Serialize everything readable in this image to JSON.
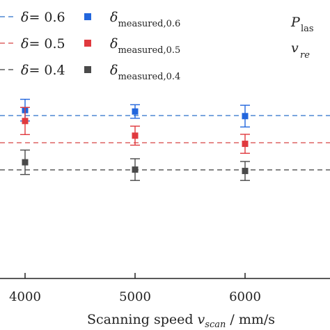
{
  "chart_data": {
    "type": "scatter",
    "xlabel": {
      "main": "Scanning speed ",
      "var": "v",
      "sub": "scan",
      "unit": " / mm/s"
    },
    "x_ticks": [
      4000,
      5000,
      6000
    ],
    "reference_lines": [
      {
        "label": "δ= 0.6",
        "value": 0.6,
        "color": "#2b6fc9"
      },
      {
        "label": "δ= 0.5",
        "value": 0.5,
        "color": "#d64545"
      },
      {
        "label": "δ= 0.4",
        "value": 0.4,
        "color": "#3a3a3a"
      }
    ],
    "series": [
      {
        "name": "δ measured,0.6",
        "symbol": "δ",
        "subscript": "measured,0.6",
        "color": "#2266dd",
        "x": [
          4000,
          5000,
          6000
        ],
        "y": [
          0.62,
          0.615,
          0.598
        ],
        "err": [
          0.04,
          0.025,
          0.04
        ]
      },
      {
        "name": "δ measured,0.5",
        "symbol": "δ",
        "subscript": "measured,0.5",
        "color": "#e0393e",
        "x": [
          4000,
          5000,
          6000
        ],
        "y": [
          0.58,
          0.526,
          0.496
        ],
        "err": [
          0.05,
          0.035,
          0.035
        ]
      },
      {
        "name": "δ measured,0.4",
        "symbol": "δ",
        "subscript": "measured,0.4",
        "color": "#4a4a4a",
        "x": [
          4000,
          5000,
          6000
        ],
        "y": [
          0.428,
          0.401,
          0.396
        ],
        "err": [
          0.045,
          0.04,
          0.035
        ]
      }
    ],
    "annotations": [
      {
        "var": "P",
        "sub": "las"
      },
      {
        "var": "v",
        "sub": "re"
      }
    ],
    "legend_position": "top",
    "grid": false
  }
}
